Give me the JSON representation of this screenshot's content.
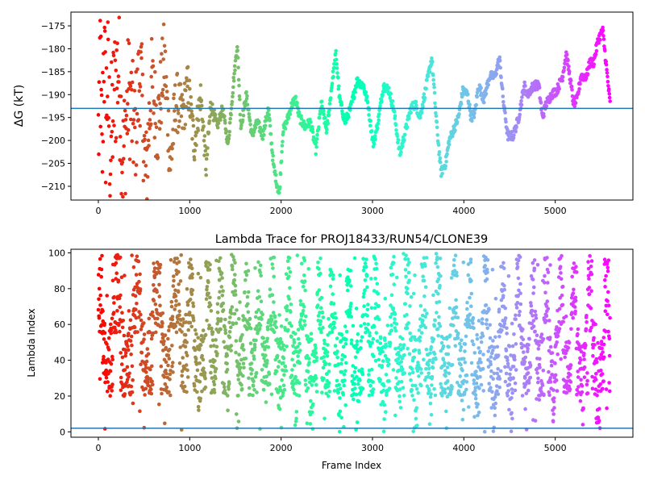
{
  "chart_data": [
    {
      "type": "scatter",
      "title": "",
      "xlabel": "",
      "ylabel": "ΔG (kT)",
      "xlim": [
        -300,
        5850
      ],
      "ylim": [
        -213,
        -172
      ],
      "xticks": [
        0,
        1000,
        2000,
        3000,
        4000,
        5000
      ],
      "yticks": [
        -210,
        -205,
        -200,
        -195,
        -190,
        -185,
        -180,
        -175
      ],
      "hline": -193,
      "hline_color": "#1f77b4",
      "x_max": 5600,
      "colormap": "rainbow (frame index: red at 0 → violet at 5600)",
      "grid": false,
      "legend": "none",
      "anchors": [
        [
          0,
          -200
        ],
        [
          20,
          -180
        ],
        [
          40,
          -207
        ],
        [
          60,
          -178
        ],
        [
          80,
          -196
        ],
        [
          100,
          -186
        ],
        [
          130,
          -202
        ],
        [
          170,
          -191
        ],
        [
          220,
          -183
        ],
        [
          270,
          -205
        ],
        [
          330,
          -189
        ],
        [
          400,
          -199
        ],
        [
          460,
          -184
        ],
        [
          520,
          -209
        ],
        [
          580,
          -187
        ],
        [
          650,
          -197
        ],
        [
          720,
          -182
        ],
        [
          790,
          -205
        ],
        [
          850,
          -191
        ],
        [
          920,
          -195
        ],
        [
          980,
          -188
        ],
        [
          1050,
          -201
        ],
        [
          1120,
          -190
        ],
        [
          1180,
          -206
        ],
        [
          1230,
          -192
        ],
        [
          1300,
          -197
        ],
        [
          1360,
          -193
        ],
        [
          1420,
          -201
        ],
        [
          1480,
          -187
        ],
        [
          1520,
          -179
        ],
        [
          1560,
          -197
        ],
        [
          1620,
          -190
        ],
        [
          1680,
          -199
        ],
        [
          1740,
          -196
        ],
        [
          1800,
          -199
        ],
        [
          1860,
          -193
        ],
        [
          1920,
          -206
        ],
        [
          1980,
          -212
        ],
        [
          2020,
          -198
        ],
        [
          2060,
          -196
        ],
        [
          2120,
          -192
        ],
        [
          2160,
          -191
        ],
        [
          2200,
          -195
        ],
        [
          2260,
          -197
        ],
        [
          2320,
          -196
        ],
        [
          2380,
          -202
        ],
        [
          2440,
          -192
        ],
        [
          2500,
          -198
        ],
        [
          2560,
          -187
        ],
        [
          2600,
          -181
        ],
        [
          2640,
          -191
        ],
        [
          2700,
          -196
        ],
        [
          2760,
          -193
        ],
        [
          2830,
          -187
        ],
        [
          2900,
          -188
        ],
        [
          2950,
          -192
        ],
        [
          3010,
          -201
        ],
        [
          3060,
          -196
        ],
        [
          3120,
          -188
        ],
        [
          3180,
          -189
        ],
        [
          3230,
          -193
        ],
        [
          3300,
          -203
        ],
        [
          3360,
          -198
        ],
        [
          3420,
          -193
        ],
        [
          3470,
          -192
        ],
        [
          3520,
          -195
        ],
        [
          3580,
          -189
        ],
        [
          3650,
          -182
        ],
        [
          3700,
          -196
        ],
        [
          3750,
          -207
        ],
        [
          3800,
          -205
        ],
        [
          3840,
          -200
        ],
        [
          3880,
          -198
        ],
        [
          3940,
          -195
        ],
        [
          3990,
          -189
        ],
        [
          4040,
          -190
        ],
        [
          4080,
          -195
        ],
        [
          4120,
          -194
        ],
        [
          4160,
          -188
        ],
        [
          4220,
          -191
        ],
        [
          4280,
          -186
        ],
        [
          4340,
          -186
        ],
        [
          4390,
          -182
        ],
        [
          4430,
          -191
        ],
        [
          4480,
          -199
        ],
        [
          4540,
          -199
        ],
        [
          4600,
          -195
        ],
        [
          4660,
          -188
        ],
        [
          4700,
          -190
        ],
        [
          4760,
          -188
        ],
        [
          4820,
          -188
        ],
        [
          4860,
          -195
        ],
        [
          4900,
          -192
        ],
        [
          4960,
          -190
        ],
        [
          5020,
          -189
        ],
        [
          5080,
          -186
        ],
        [
          5120,
          -181
        ],
        [
          5160,
          -186
        ],
        [
          5200,
          -192
        ],
        [
          5240,
          -191
        ],
        [
          5280,
          -186
        ],
        [
          5340,
          -186
        ],
        [
          5380,
          -183
        ],
        [
          5420,
          -183
        ],
        [
          5470,
          -178
        ],
        [
          5520,
          -176
        ],
        [
          5560,
          -184
        ],
        [
          5600,
          -192
        ]
      ]
    },
    {
      "type": "scatter",
      "title": "Lambda Trace for PROJ18433/RUN54/CLONE39",
      "xlabel": "Frame Index",
      "ylabel": "Lambda Index",
      "xlim": [
        -300,
        5850
      ],
      "ylim": [
        -3,
        102
      ],
      "xticks": [
        0,
        1000,
        2000,
        3000,
        4000,
        5000
      ],
      "yticks": [
        0,
        20,
        40,
        60,
        80,
        100
      ],
      "hline": 2,
      "hline_color": "#1f77b4",
      "x_max": 5600,
      "colormap": "rainbow (frame index: red at 0 → violet at 5600)",
      "grid": false,
      "legend": "none",
      "sweep_centers": [
        0,
        200,
        420,
        640,
        860,
        1020,
        1200,
        1340,
        1480,
        1620,
        1760,
        1900,
        2080,
        2240,
        2420,
        2560,
        2740,
        2920,
        3040,
        3220,
        3380,
        3560,
        3720,
        3900,
        4060,
        4240,
        4420,
        4600,
        4760,
        4900,
        5060,
        5200,
        5380,
        5560
      ]
    }
  ]
}
